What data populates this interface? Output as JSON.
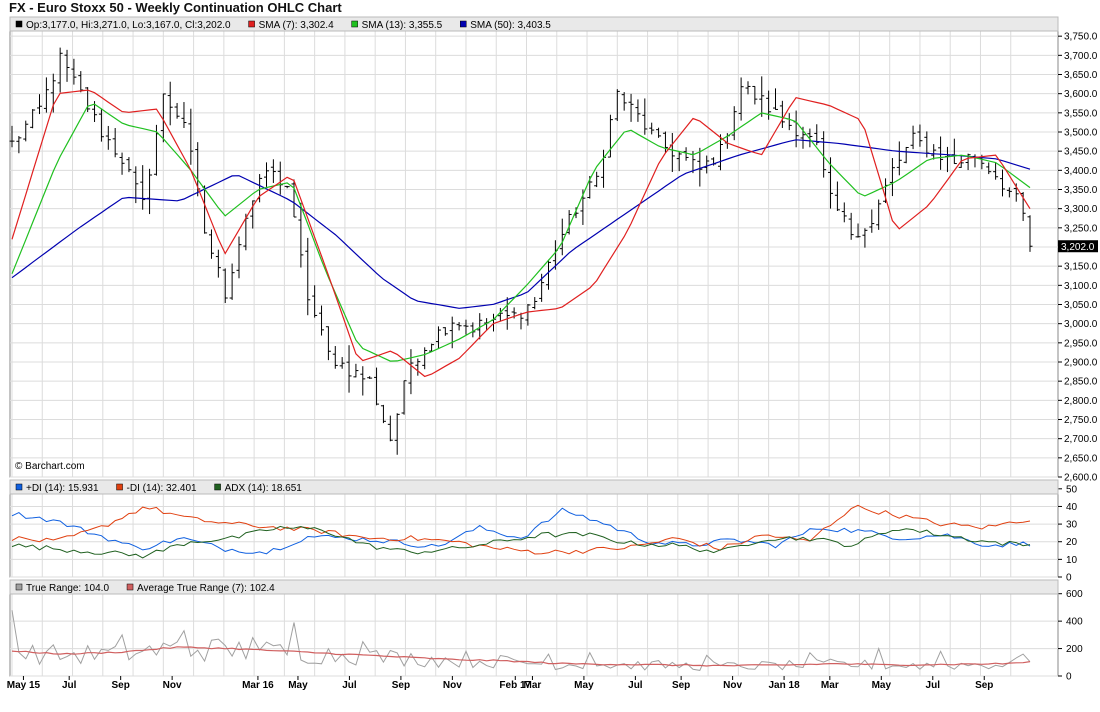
{
  "title": "FX - Euro Stoxx 50 - Weekly Continuation OHLC Chart",
  "watermark": "© Barchart.com",
  "chart_data": [
    {
      "type": "ohlc",
      "legend": [
        {
          "label": "Op:3,177.0, Hi:3,271.0, Lo:3,167.0, Cl:3,202.0",
          "color": "#000000"
        },
        {
          "label": "SMA (7): 3,302.4",
          "color": "#e02020"
        },
        {
          "label": "SMA (13): 3,355.5",
          "color": "#20c020"
        },
        {
          "label": "SMA (50): 3,403.5",
          "color": "#0000b0"
        }
      ],
      "ylim": [
        2600,
        3800
      ],
      "y_ticks": [
        "3,750.0",
        "3,700.0",
        "3,650.0",
        "3,600.0",
        "3,550.0",
        "3,500.0",
        "3,450.0",
        "3,400.0",
        "3,350.0",
        "3,300.0",
        "3,250.0",
        "3,200.0",
        "3,150.0",
        "3,100.0",
        "3,050.0",
        "3,000.0",
        "2,950.0",
        "2,900.0",
        "2,850.0",
        "2,800.0",
        "2,750.0",
        "2,700.0",
        "2,650.0",
        "2,600.0"
      ],
      "last_price_label": "3,202.0",
      "last_price": 3202,
      "close_anchors": [
        [
          0,
          3470
        ],
        [
          4,
          3560
        ],
        [
          7,
          3690
        ],
        [
          10,
          3600
        ],
        [
          13,
          3500
        ],
        [
          16,
          3430
        ],
        [
          19,
          3310
        ],
        [
          22,
          3590
        ],
        [
          25,
          3530
        ],
        [
          28,
          3240
        ],
        [
          31,
          3080
        ],
        [
          34,
          3280
        ],
        [
          37,
          3400
        ],
        [
          40,
          3360
        ],
        [
          43,
          3070
        ],
        [
          46,
          2920
        ],
        [
          49,
          2880
        ],
        [
          52,
          2850
        ],
        [
          55,
          2700
        ],
        [
          58,
          2900
        ],
        [
          61,
          2960
        ],
        [
          64,
          3010
        ],
        [
          67,
          2990
        ],
        [
          70,
          3010
        ],
        [
          73,
          3020
        ],
        [
          76,
          3060
        ],
        [
          79,
          3200
        ],
        [
          82,
          3300
        ],
        [
          85,
          3380
        ],
        [
          88,
          3600
        ],
        [
          91,
          3540
        ],
        [
          94,
          3470
        ],
        [
          97,
          3440
        ],
        [
          100,
          3400
        ],
        [
          103,
          3450
        ],
        [
          106,
          3620
        ],
        [
          109,
          3580
        ],
        [
          112,
          3530
        ],
        [
          115,
          3500
        ],
        [
          117,
          3460
        ],
        [
          119,
          3320
        ],
        [
          122,
          3240
        ],
        [
          125,
          3260
        ],
        [
          128,
          3400
        ],
        [
          131,
          3480
        ],
        [
          134,
          3450
        ],
        [
          137,
          3420
        ],
        [
          140,
          3440
        ],
        [
          143,
          3390
        ],
        [
          146,
          3320
        ],
        [
          147,
          3280
        ],
        [
          148,
          3202
        ]
      ],
      "sma7_anchors": [
        [
          0,
          3220
        ],
        [
          4,
          3600
        ],
        [
          7,
          3610
        ],
        [
          10,
          3550
        ],
        [
          13,
          3560
        ],
        [
          16,
          3400
        ],
        [
          19,
          3180
        ],
        [
          22,
          3330
        ],
        [
          25,
          3390
        ],
        [
          28,
          3150
        ],
        [
          31,
          2900
        ],
        [
          34,
          2930
        ],
        [
          37,
          2860
        ],
        [
          40,
          2910
        ],
        [
          43,
          3000
        ],
        [
          46,
          3030
        ],
        [
          49,
          3040
        ],
        [
          52,
          3100
        ],
        [
          55,
          3240
        ],
        [
          58,
          3430
        ],
        [
          61,
          3540
        ],
        [
          64,
          3470
        ],
        [
          67,
          3440
        ],
        [
          70,
          3590
        ],
        [
          73,
          3570
        ],
        [
          76,
          3530
        ],
        [
          79,
          3240
        ],
        [
          82,
          3310
        ],
        [
          85,
          3430
        ],
        [
          88,
          3440
        ],
        [
          91,
          3300
        ]
      ],
      "sma13_anchors": [
        [
          0,
          3130
        ],
        [
          4,
          3420
        ],
        [
          7,
          3580
        ],
        [
          10,
          3520
        ],
        [
          13,
          3500
        ],
        [
          16,
          3400
        ],
        [
          19,
          3280
        ],
        [
          22,
          3350
        ],
        [
          25,
          3370
        ],
        [
          28,
          3140
        ],
        [
          31,
          2940
        ],
        [
          34,
          2900
        ],
        [
          37,
          2920
        ],
        [
          40,
          2960
        ],
        [
          43,
          3010
        ],
        [
          46,
          3100
        ],
        [
          49,
          3200
        ],
        [
          52,
          3400
        ],
        [
          55,
          3510
        ],
        [
          58,
          3460
        ],
        [
          61,
          3440
        ],
        [
          64,
          3490
        ],
        [
          67,
          3550
        ],
        [
          70,
          3530
        ],
        [
          73,
          3420
        ],
        [
          76,
          3330
        ],
        [
          79,
          3370
        ],
        [
          82,
          3430
        ],
        [
          85,
          3440
        ],
        [
          88,
          3420
        ],
        [
          91,
          3355
        ]
      ],
      "sma50_anchors": [
        [
          0,
          3120
        ],
        [
          6,
          3250
        ],
        [
          10,
          3330
        ],
        [
          15,
          3320
        ],
        [
          20,
          3390
        ],
        [
          25,
          3320
        ],
        [
          29,
          3230
        ],
        [
          33,
          3120
        ],
        [
          36,
          3060
        ],
        [
          40,
          3040
        ],
        [
          43,
          3050
        ],
        [
          46,
          3080
        ],
        [
          50,
          3190
        ],
        [
          55,
          3290
        ],
        [
          60,
          3390
        ],
        [
          65,
          3440
        ],
        [
          70,
          3480
        ],
        [
          74,
          3470
        ],
        [
          79,
          3450
        ],
        [
          84,
          3440
        ],
        [
          88,
          3430
        ],
        [
          91,
          3403
        ]
      ],
      "weeks_total": 149
    },
    {
      "type": "line",
      "legend": [
        {
          "label": "+DI (14): 15.931",
          "color": "#1060e0"
        },
        {
          "label": "-DI (14): 32.401",
          "color": "#e04010"
        },
        {
          "label": "ADX (14): 18.651",
          "color": "#206020"
        }
      ],
      "ylim": [
        0,
        55
      ],
      "y_ticks": [
        "50",
        "40",
        "30",
        "20",
        "10",
        "0"
      ],
      "series": [
        {
          "color": "#1060e0",
          "anchors": [
            [
              0,
              36
            ],
            [
              4,
              32
            ],
            [
              8,
              24
            ],
            [
              12,
              16
            ],
            [
              16,
              22
            ],
            [
              20,
              16
            ],
            [
              24,
              14
            ],
            [
              28,
              23
            ],
            [
              32,
              22
            ],
            [
              36,
              20
            ],
            [
              40,
              17
            ],
            [
              44,
              28
            ],
            [
              48,
              22
            ],
            [
              52,
              38
            ],
            [
              56,
              30
            ],
            [
              60,
              20
            ],
            [
              64,
              18
            ],
            [
              68,
              21
            ],
            [
              72,
              18
            ],
            [
              76,
              28
            ],
            [
              80,
              26
            ],
            [
              84,
              22
            ],
            [
              88,
              24
            ],
            [
              92,
              18
            ],
            [
              96,
              19
            ]
          ]
        },
        {
          "color": "#e04010",
          "anchors": [
            [
              0,
              22
            ],
            [
              4,
              20
            ],
            [
              8,
              28
            ],
            [
              12,
              40
            ],
            [
              16,
              33
            ],
            [
              20,
              30
            ],
            [
              24,
              28
            ],
            [
              28,
              26
            ],
            [
              32,
              22
            ],
            [
              36,
              22
            ],
            [
              40,
              20
            ],
            [
              44,
              16
            ],
            [
              48,
              14
            ],
            [
              52,
              15
            ],
            [
              56,
              17
            ],
            [
              60,
              22
            ],
            [
              64,
              16
            ],
            [
              68,
              24
            ],
            [
              72,
              20
            ],
            [
              76,
              40
            ],
            [
              80,
              35
            ],
            [
              84,
              30
            ],
            [
              88,
              28
            ],
            [
              92,
              33
            ]
          ]
        },
        {
          "color": "#206020",
          "anchors": [
            [
              0,
              18
            ],
            [
              4,
              16
            ],
            [
              8,
              14
            ],
            [
              12,
              12
            ],
            [
              16,
              20
            ],
            [
              20,
              22
            ],
            [
              24,
              28
            ],
            [
              28,
              27
            ],
            [
              32,
              18
            ],
            [
              36,
              14
            ],
            [
              40,
              16
            ],
            [
              44,
              20
            ],
            [
              48,
              24
            ],
            [
              52,
              24
            ],
            [
              56,
              19
            ],
            [
              60,
              18
            ],
            [
              64,
              14
            ],
            [
              68,
              22
            ],
            [
              72,
              22
            ],
            [
              76,
              18
            ],
            [
              80,
              28
            ],
            [
              84,
              24
            ],
            [
              88,
              20
            ],
            [
              92,
              18
            ]
          ]
        }
      ],
      "points": 96
    },
    {
      "type": "line",
      "legend": [
        {
          "label": "True Range: 104.0",
          "color": "#a0a0a0"
        },
        {
          "label": "Average True Range (7): 102.4",
          "color": "#d06060"
        }
      ],
      "ylim": [
        0,
        700
      ],
      "y_ticks": [
        "600",
        "400",
        "200",
        "0"
      ],
      "atr_anchors": [
        [
          0,
          180
        ],
        [
          8,
          160
        ],
        [
          16,
          175
        ],
        [
          24,
          210
        ],
        [
          32,
          200
        ],
        [
          40,
          180
        ],
        [
          48,
          160
        ],
        [
          56,
          140
        ],
        [
          64,
          120
        ],
        [
          72,
          110
        ],
        [
          80,
          90
        ],
        [
          88,
          85
        ],
        [
          96,
          80
        ],
        [
          104,
          75
        ],
        [
          112,
          80
        ],
        [
          120,
          90
        ],
        [
          128,
          80
        ],
        [
          136,
          85
        ],
        [
          144,
          90
        ],
        [
          148,
          102
        ]
      ],
      "tr_spikes": [
        [
          0,
          480
        ],
        [
          16,
          300
        ],
        [
          25,
          330
        ],
        [
          35,
          280
        ],
        [
          41,
          390
        ],
        [
          51,
          250
        ],
        [
          66,
          180
        ],
        [
          78,
          160
        ],
        [
          84,
          170
        ],
        [
          101,
          150
        ],
        [
          116,
          170
        ],
        [
          126,
          200
        ],
        [
          135,
          180
        ],
        [
          147,
          160
        ],
        [
          148,
          104
        ]
      ]
    }
  ],
  "x_axis": {
    "labels": [
      {
        "text": "May 15",
        "week": 2
      },
      {
        "text": "Jul",
        "week": 10
      },
      {
        "text": "Sep",
        "week": 19
      },
      {
        "text": "Nov",
        "week": 28
      },
      {
        "text": "Mar 16",
        "week": 43
      },
      {
        "text": "May",
        "week": 50
      },
      {
        "text": "Jul",
        "week": 59
      },
      {
        "text": "Sep",
        "week": 68
      },
      {
        "text": "Nov",
        "week": 77
      },
      {
        "text": "Feb 17",
        "week": 88
      },
      {
        "text": "Mar",
        "week": 91
      },
      {
        "text": "May",
        "week": 100
      },
      {
        "text": "Jul",
        "week": 109
      },
      {
        "text": "Sep",
        "week": 117
      },
      {
        "text": "Nov",
        "week": 126
      },
      {
        "text": "Jan 18",
        "week": 135
      },
      {
        "text": "Mar",
        "week": 143
      },
      {
        "text": "May",
        "week": 152
      },
      {
        "text": "Jul",
        "week": 161
      },
      {
        "text": "Sep",
        "week": 170
      }
    ],
    "weeks_total": 178
  }
}
